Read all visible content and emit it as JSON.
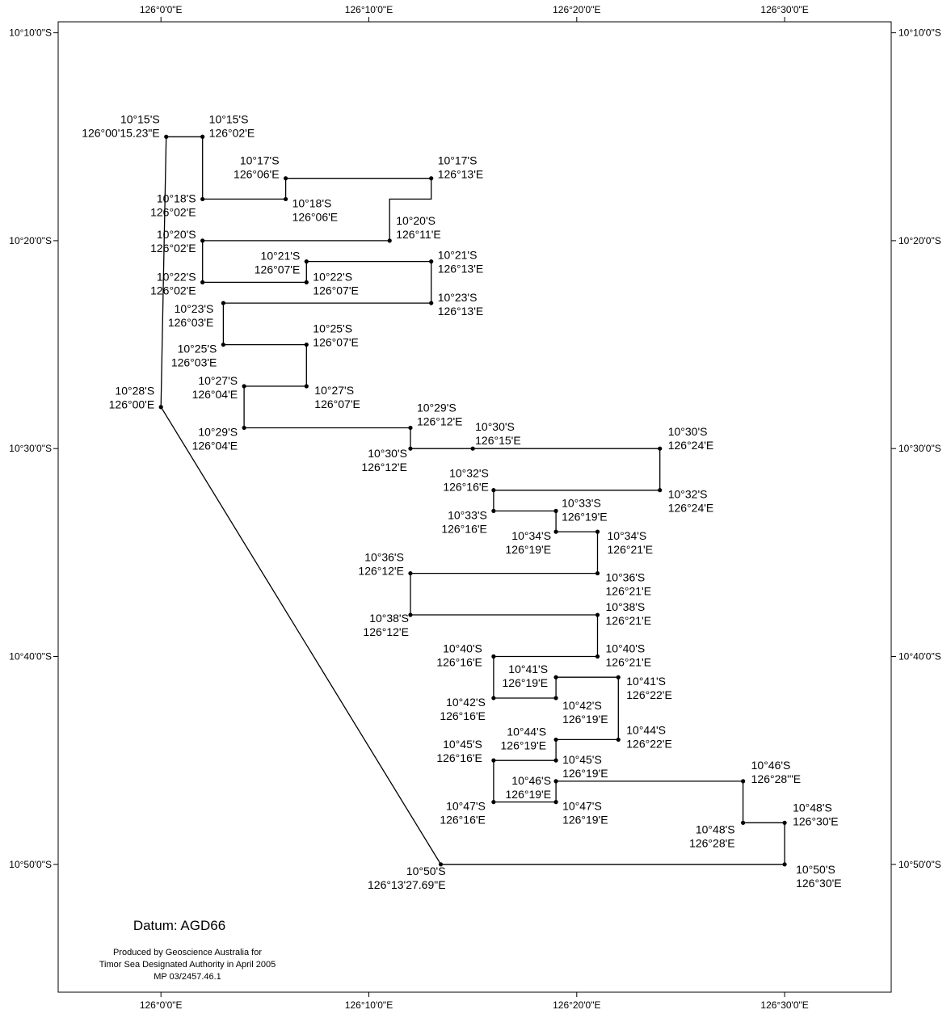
{
  "map": {
    "datum_label": "Datum: AGD66",
    "credits": [
      "Produced by Geoscience Australia for",
      "Timor Sea Designated Authority in April 2005",
      "MP 03/2457.46.1"
    ],
    "colors": {
      "line": "#000000",
      "frame": "#000000",
      "background": "#ffffff"
    },
    "extent": {
      "lon_min_min": -5,
      "lon_max_min": 36,
      "lat_min_min": 9,
      "lat_max_min": 57
    },
    "x_ticks": [
      {
        "lon_min": 0,
        "label": "126°0'0\"E"
      },
      {
        "lon_min": 10,
        "label": "126°10'0\"E"
      },
      {
        "lon_min": 20,
        "label": "126°20'0\"E"
      },
      {
        "lon_min": 30,
        "label": "126°30'0\"E"
      }
    ],
    "y_ticks": [
      {
        "lat_min": 10,
        "label": "10°10'0\"S"
      },
      {
        "lat_min": 20,
        "label": "10°20'0\"S"
      },
      {
        "lat_min": 30,
        "label": "10°30'0\"S"
      },
      {
        "lat_min": 40,
        "label": "10°40'0\"S"
      },
      {
        "lat_min": 50,
        "label": "10°50'0\"S"
      }
    ],
    "boundary_lon_min": [
      0.254,
      2,
      2,
      6,
      6,
      13,
      13,
      11,
      11,
      2,
      2,
      7,
      7,
      13,
      13,
      3,
      3,
      7,
      7,
      4,
      4,
      12,
      12,
      15,
      24,
      24,
      16,
      16,
      19,
      19,
      21,
      21,
      12,
      12,
      21,
      21,
      16,
      16,
      19,
      19,
      22,
      22,
      19,
      19,
      16,
      16,
      19,
      19,
      28,
      28,
      30,
      30,
      13.461,
      0,
      0.254
    ],
    "boundary_lat_min": [
      15,
      15,
      18,
      18,
      17,
      17,
      18,
      18,
      20,
      20,
      22,
      22,
      21,
      21,
      23,
      23,
      25,
      25,
      27,
      27,
      29,
      29,
      30,
      30,
      30,
      32,
      32,
      33,
      33,
      34,
      34,
      36,
      36,
      38,
      38,
      40,
      40,
      42,
      42,
      41,
      41,
      44,
      44,
      45,
      45,
      47,
      47,
      46,
      46,
      48,
      48,
      50,
      50,
      28,
      15
    ],
    "points": [
      {
        "lon_min": 0.254,
        "lat_min": 15,
        "lines": [
          "10°15'S",
          "126°00'15.23\"E"
        ],
        "anchor": "end",
        "dx": -8,
        "dy": -17
      },
      {
        "lon_min": 2,
        "lat_min": 15,
        "lines": [
          "10°15'S",
          "126°02'E"
        ],
        "anchor": "start",
        "dx": 8,
        "dy": -17
      },
      {
        "lon_min": 6,
        "lat_min": 17,
        "lines": [
          "10°17'S",
          "126°06'E"
        ],
        "anchor": "end",
        "dx": -8,
        "dy": -17
      },
      {
        "lon_min": 13,
        "lat_min": 17,
        "lines": [
          "10°17'S",
          "126°13'E"
        ],
        "anchor": "start",
        "dx": 8,
        "dy": -17
      },
      {
        "lon_min": 2,
        "lat_min": 18,
        "lines": [
          "10°18'S",
          "126°02'E"
        ],
        "anchor": "end",
        "dx": -8,
        "dy": 4
      },
      {
        "lon_min": 6,
        "lat_min": 18,
        "lines": [
          "10°18'S",
          "126°06'E"
        ],
        "anchor": "start",
        "dx": 8,
        "dy": 10
      },
      {
        "lon_min": 11,
        "lat_min": 20,
        "lines": [
          "10°20'S",
          "126°11'E"
        ],
        "anchor": "start",
        "dx": 8,
        "dy": -20
      },
      {
        "lon_min": 2,
        "lat_min": 20,
        "lines": [
          "10°20'S",
          "126°02'E"
        ],
        "anchor": "end",
        "dx": -8,
        "dy": -3
      },
      {
        "lon_min": 7,
        "lat_min": 21,
        "lines": [
          "10°21'S",
          "126°07'E"
        ],
        "anchor": "end",
        "dx": -8,
        "dy": -2
      },
      {
        "lon_min": 13,
        "lat_min": 21,
        "lines": [
          "10°21'S",
          "126°13'E"
        ],
        "anchor": "start",
        "dx": 8,
        "dy": -3
      },
      {
        "lon_min": 2,
        "lat_min": 22,
        "lines": [
          "10°22'S",
          "126°02'E"
        ],
        "anchor": "end",
        "dx": -8,
        "dy": -2
      },
      {
        "lon_min": 7,
        "lat_min": 22,
        "lines": [
          "10°22'S",
          "126°07'E"
        ],
        "anchor": "start",
        "dx": 8,
        "dy": -2
      },
      {
        "lon_min": 3,
        "lat_min": 23,
        "lines": [
          "10°23'S",
          "126°03'E"
        ],
        "anchor": "end",
        "dx": -12,
        "dy": 12
      },
      {
        "lon_min": 13,
        "lat_min": 23,
        "lines": [
          "10°23'S",
          "126°13'E"
        ],
        "anchor": "start",
        "dx": 8,
        "dy": -2
      },
      {
        "lon_min": 3,
        "lat_min": 25,
        "lines": [
          "10°25'S",
          "126°03'E"
        ],
        "anchor": "end",
        "dx": -8,
        "dy": 10
      },
      {
        "lon_min": 7,
        "lat_min": 25,
        "lines": [
          "10°25'S",
          "126°07'E"
        ],
        "anchor": "start",
        "dx": 8,
        "dy": -15
      },
      {
        "lon_min": 4,
        "lat_min": 27,
        "lines": [
          "10°27'S",
          "126°04'E"
        ],
        "anchor": "end",
        "dx": -8,
        "dy": -2
      },
      {
        "lon_min": 7,
        "lat_min": 27,
        "lines": [
          "10°27'S",
          "126°07'E"
        ],
        "anchor": "start",
        "dx": 10,
        "dy": 10
      },
      {
        "lon_min": 0,
        "lat_min": 28,
        "lines": [
          "10°28'S",
          "126°00'E"
        ],
        "anchor": "end",
        "dx": -8,
        "dy": -15
      },
      {
        "lon_min": 4,
        "lat_min": 29,
        "lines": [
          "10°29'S",
          "126°04'E"
        ],
        "anchor": "end",
        "dx": -8,
        "dy": 10
      },
      {
        "lon_min": 12,
        "lat_min": 29,
        "lines": [
          "10°29'S",
          "126°12'E"
        ],
        "anchor": "start",
        "dx": 8,
        "dy": -20
      },
      {
        "lon_min": 12,
        "lat_min": 30,
        "lines": [
          "10°30'S",
          "126°12'E"
        ],
        "anchor": "end",
        "dx": -4,
        "dy": 11
      },
      {
        "lon_min": 15,
        "lat_min": 30,
        "lines": [
          "10°30'S",
          "126°15'E"
        ],
        "anchor": "start",
        "dx": 3,
        "dy": -22
      },
      {
        "lon_min": 24,
        "lat_min": 30,
        "lines": [
          "10°30'S",
          "126°24'E"
        ],
        "anchor": "start",
        "dx": 10,
        "dy": -16
      },
      {
        "lon_min": 16,
        "lat_min": 32,
        "lines": [
          "10°32'S",
          "126°16'E"
        ],
        "anchor": "end",
        "dx": -6,
        "dy": -16
      },
      {
        "lon_min": 24,
        "lat_min": 32,
        "lines": [
          "10°32'S",
          "126°24'E"
        ],
        "anchor": "start",
        "dx": 10,
        "dy": 10
      },
      {
        "lon_min": 16,
        "lat_min": 33,
        "lines": [
          "10°33'S",
          "126°16'E"
        ],
        "anchor": "end",
        "dx": -8,
        "dy": 10
      },
      {
        "lon_min": 19,
        "lat_min": 33,
        "lines": [
          "10°33'S",
          "126°19'E"
        ],
        "anchor": "start",
        "dx": 7,
        "dy": -5
      },
      {
        "lon_min": 19,
        "lat_min": 34,
        "lines": [
          "10°34'S",
          "126°19'E"
        ],
        "anchor": "end",
        "dx": -6,
        "dy": 10
      },
      {
        "lon_min": 21,
        "lat_min": 34,
        "lines": [
          "10°34'S",
          "126°21'E"
        ],
        "anchor": "start",
        "dx": 12,
        "dy": 10
      },
      {
        "lon_min": 12,
        "lat_min": 36,
        "lines": [
          "10°36'S",
          "126°12'E"
        ],
        "anchor": "end",
        "dx": -8,
        "dy": -15
      },
      {
        "lon_min": 21,
        "lat_min": 36,
        "lines": [
          "10°36'S",
          "126°21'E"
        ],
        "anchor": "start",
        "dx": 10,
        "dy": 10
      },
      {
        "lon_min": 12,
        "lat_min": 38,
        "lines": [
          "10°38'S",
          "126°12'E"
        ],
        "anchor": "end",
        "dx": -2,
        "dy": 9
      },
      {
        "lon_min": 21,
        "lat_min": 38,
        "lines": [
          "10°38'S",
          "126°21'E"
        ],
        "anchor": "start",
        "dx": 10,
        "dy": -5
      },
      {
        "lon_min": 21,
        "lat_min": 40,
        "lines": [
          "10°40'S",
          "126°21'E"
        ],
        "anchor": "start",
        "dx": 10,
        "dy": -5
      },
      {
        "lon_min": 16,
        "lat_min": 40,
        "lines": [
          "10°40'S",
          "126°16'E"
        ],
        "anchor": "end",
        "dx": -14,
        "dy": -5
      },
      {
        "lon_min": 19,
        "lat_min": 41,
        "lines": [
          "10°41'S",
          "126°19'E"
        ],
        "anchor": "end",
        "dx": -10,
        "dy": -5
      },
      {
        "lon_min": 22,
        "lat_min": 41,
        "lines": [
          "10°41'S",
          "126°22'E"
        ],
        "anchor": "start",
        "dx": 10,
        "dy": 10
      },
      {
        "lon_min": 16,
        "lat_min": 42,
        "lines": [
          "10°42'S",
          "126°16'E"
        ],
        "anchor": "end",
        "dx": -10,
        "dy": 10
      },
      {
        "lon_min": 19,
        "lat_min": 42,
        "lines": [
          "10°42'S",
          "126°19'E"
        ],
        "anchor": "start",
        "dx": 8,
        "dy": 14
      },
      {
        "lon_min": 19,
        "lat_min": 44,
        "lines": [
          "10°44'S",
          "126°19'E"
        ],
        "anchor": "end",
        "dx": -12,
        "dy": -5
      },
      {
        "lon_min": 22,
        "lat_min": 44,
        "lines": [
          "10°44'S",
          "126°22'E"
        ],
        "anchor": "start",
        "dx": 10,
        "dy": -7
      },
      {
        "lon_min": 16,
        "lat_min": 45,
        "lines": [
          "10°45'S",
          "126°16'E"
        ],
        "anchor": "end",
        "dx": -14,
        "dy": -15
      },
      {
        "lon_min": 19,
        "lat_min": 45,
        "lines": [
          "10°45'S",
          "126°19'E"
        ],
        "anchor": "start",
        "dx": 8,
        "dy": 4
      },
      {
        "lon_min": 19,
        "lat_min": 46,
        "lines": [
          "10°46'S",
          "126°19'E"
        ],
        "anchor": "end",
        "dx": -6,
        "dy": 4
      },
      {
        "lon_min": 28,
        "lat_min": 46,
        "lines": [
          "10°46'S",
          "126°28'\"E"
        ],
        "anchor": "start",
        "dx": 10,
        "dy": -15
      },
      {
        "lon_min": 16,
        "lat_min": 47,
        "lines": [
          "10°47'S",
          "126°16'E"
        ],
        "anchor": "end",
        "dx": -10,
        "dy": 10
      },
      {
        "lon_min": 19,
        "lat_min": 47,
        "lines": [
          "10°47'S",
          "126°19'E"
        ],
        "anchor": "start",
        "dx": 8,
        "dy": 10
      },
      {
        "lon_min": 28,
        "lat_min": 48,
        "lines": [
          "10°48'S",
          "126°28'E"
        ],
        "anchor": "end",
        "dx": -10,
        "dy": 13
      },
      {
        "lon_min": 30,
        "lat_min": 48,
        "lines": [
          "10°48'S",
          "126°30'E"
        ],
        "anchor": "start",
        "dx": 10,
        "dy": -14
      },
      {
        "lon_min": 30,
        "lat_min": 50,
        "lines": [
          "10°50'S",
          "126°30'E"
        ],
        "anchor": "start",
        "dx": 14,
        "dy": 11
      },
      {
        "lon_min": 13.461,
        "lat_min": 50,
        "lines": [
          "10°50'S",
          "126°13'27.69\"E"
        ],
        "anchor": "end",
        "dx": 6,
        "dy": 13
      }
    ]
  }
}
